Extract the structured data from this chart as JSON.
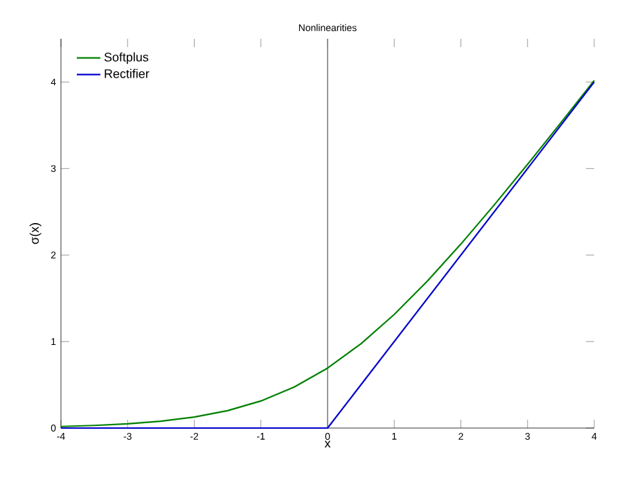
{
  "chart_data": {
    "type": "line",
    "title": "Nonlinearities",
    "xlabel": "x",
    "ylabel": "σ(x)",
    "xlim": [
      -4,
      4
    ],
    "ylim": [
      0,
      4.5
    ],
    "xticks": [
      -4,
      -3,
      -2,
      -1,
      0,
      1,
      2,
      3,
      4
    ],
    "yticks": [
      0,
      1,
      2,
      3,
      4
    ],
    "legend": "top left",
    "ref_lines": [
      {
        "axis": "x",
        "value": 0,
        "color": "#808080"
      }
    ],
    "series": [
      {
        "name": "Softplus",
        "color": "#008000",
        "x": [
          -4,
          -3.5,
          -3,
          -2.5,
          -2,
          -1.5,
          -1,
          -0.5,
          0,
          0.5,
          1,
          1.5,
          2,
          2.5,
          3,
          3.5,
          4
        ],
        "values": [
          0.018,
          0.03,
          0.049,
          0.079,
          0.127,
          0.201,
          0.313,
          0.474,
          0.693,
          0.974,
          1.313,
          1.701,
          2.127,
          2.579,
          3.049,
          3.53,
          4.018
        ]
      },
      {
        "name": "Rectifier",
        "color": "#0000cc",
        "x": [
          -4,
          0,
          4
        ],
        "values": [
          0,
          0,
          4
        ]
      }
    ]
  }
}
